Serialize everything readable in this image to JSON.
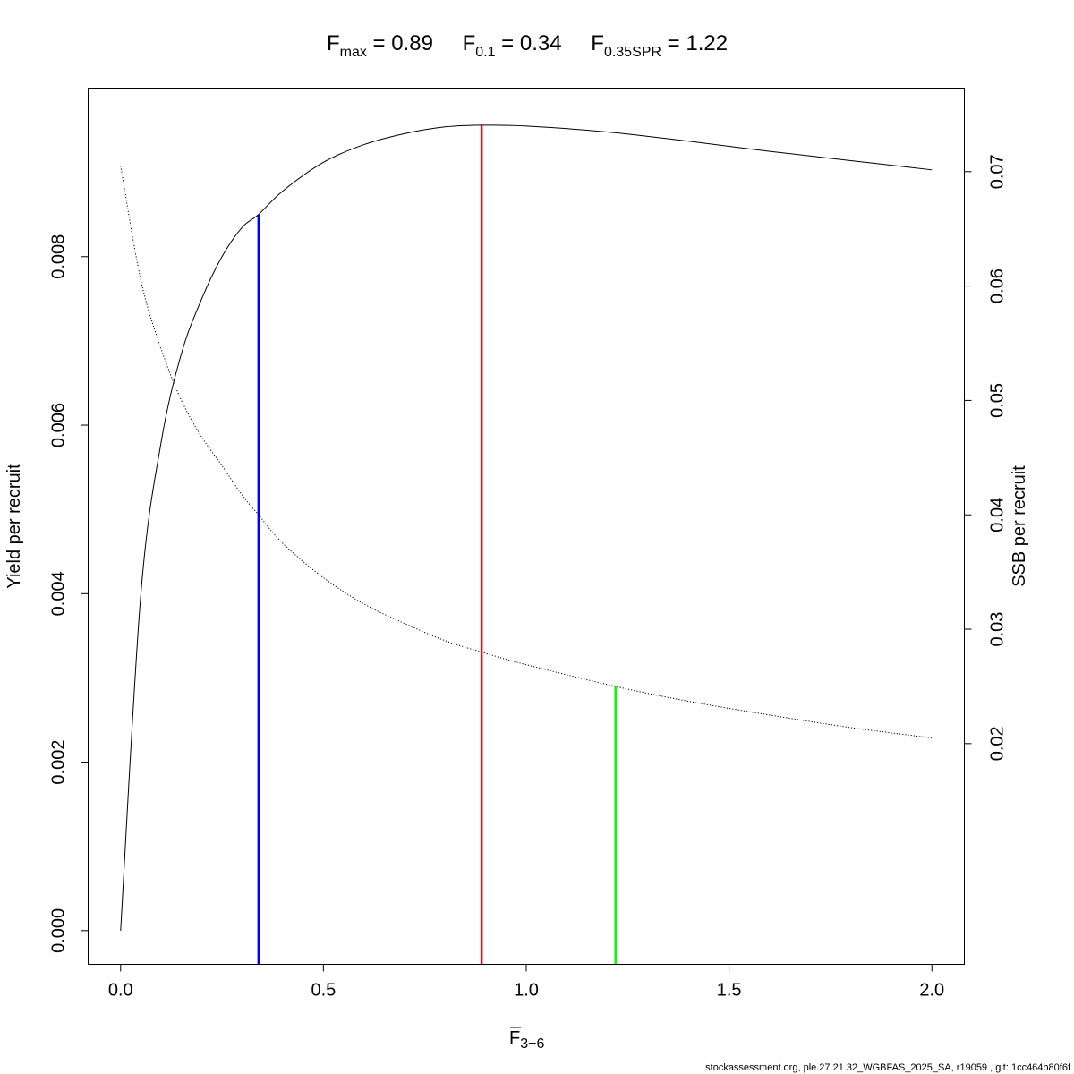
{
  "header": {
    "items": [
      {
        "sym": "F",
        "sub": "max",
        "value": "0.89"
      },
      {
        "sym": "F",
        "sub": "0.1",
        "value": "0.34"
      },
      {
        "sym": "F",
        "sub": "0.35SPR",
        "value": "1.22"
      }
    ]
  },
  "footer": "stockassessment.org, ple.27.21.32_WGBFAS_2025_SA, r19059 , git: 1cc464b80f6f",
  "chart_data": {
    "type": "line",
    "x_axis": {
      "label_main": "F",
      "label_sub": "3−6",
      "label_overline": true,
      "range": [
        -0.08,
        2.08
      ],
      "ticks": [
        0,
        0.5,
        1,
        1.5,
        2
      ],
      "tick_labels": [
        "0.0",
        "0.5",
        "1.0",
        "1.5",
        "2.0"
      ]
    },
    "y_left": {
      "label": "Yield per recruit",
      "range": [
        -0.0004,
        0.01
      ],
      "ticks": [
        0,
        0.002,
        0.004,
        0.006,
        0.008
      ],
      "tick_labels": [
        "0.000",
        "0.002",
        "0.004",
        "0.006",
        "0.008"
      ]
    },
    "y_right": {
      "label": "SSB per recruit",
      "range": [
        0.0007,
        0.0773
      ],
      "ticks": [
        0.02,
        0.03,
        0.04,
        0.05,
        0.06,
        0.07
      ],
      "tick_labels": [
        "0.02",
        "0.03",
        "0.04",
        "0.05",
        "0.06",
        "0.07"
      ]
    },
    "series": [
      {
        "axis": "left",
        "style": "solid",
        "color": "#000000",
        "x": [
          0,
          0.05,
          0.1,
          0.15,
          0.2,
          0.25,
          0.3,
          0.34,
          0.4,
          0.5,
          0.6,
          0.7,
          0.8,
          0.89,
          1.0,
          1.2,
          1.4,
          1.6,
          1.8,
          2.0
        ],
        "y": [
          0,
          0.004,
          0.0058,
          0.00685,
          0.0075,
          0.008,
          0.00835,
          0.0085,
          0.00878,
          0.00912,
          0.00933,
          0.00946,
          0.00954,
          0.00956,
          0.00955,
          0.00948,
          0.00937,
          0.00925,
          0.00914,
          0.00903
        ]
      },
      {
        "axis": "right",
        "style": "dotted",
        "color": "#000000",
        "x": [
          0,
          0.05,
          0.1,
          0.15,
          0.2,
          0.25,
          0.3,
          0.34,
          0.4,
          0.5,
          0.6,
          0.7,
          0.8,
          0.89,
          1.0,
          1.22,
          1.4,
          1.6,
          1.8,
          2.0
        ],
        "y": [
          0.0705,
          0.0605,
          0.0545,
          0.05,
          0.0468,
          0.0443,
          0.0417,
          0.04,
          0.0375,
          0.0345,
          0.0322,
          0.0305,
          0.029,
          0.028,
          0.0269,
          0.025,
          0.0237,
          0.0225,
          0.0214,
          0.0205
        ]
      }
    ],
    "reference_lines": [
      {
        "name": "F0.1",
        "x": 0.34,
        "color": "#0000ff",
        "axis": "left",
        "y_top": 0.0085
      },
      {
        "name": "Fmax",
        "x": 0.89,
        "color": "#ff0000",
        "axis": "left",
        "y_top": 0.00956
      },
      {
        "name": "F0.35SPR",
        "x": 1.22,
        "color": "#00ff00",
        "axis": "right",
        "y_top": 0.025
      }
    ]
  }
}
